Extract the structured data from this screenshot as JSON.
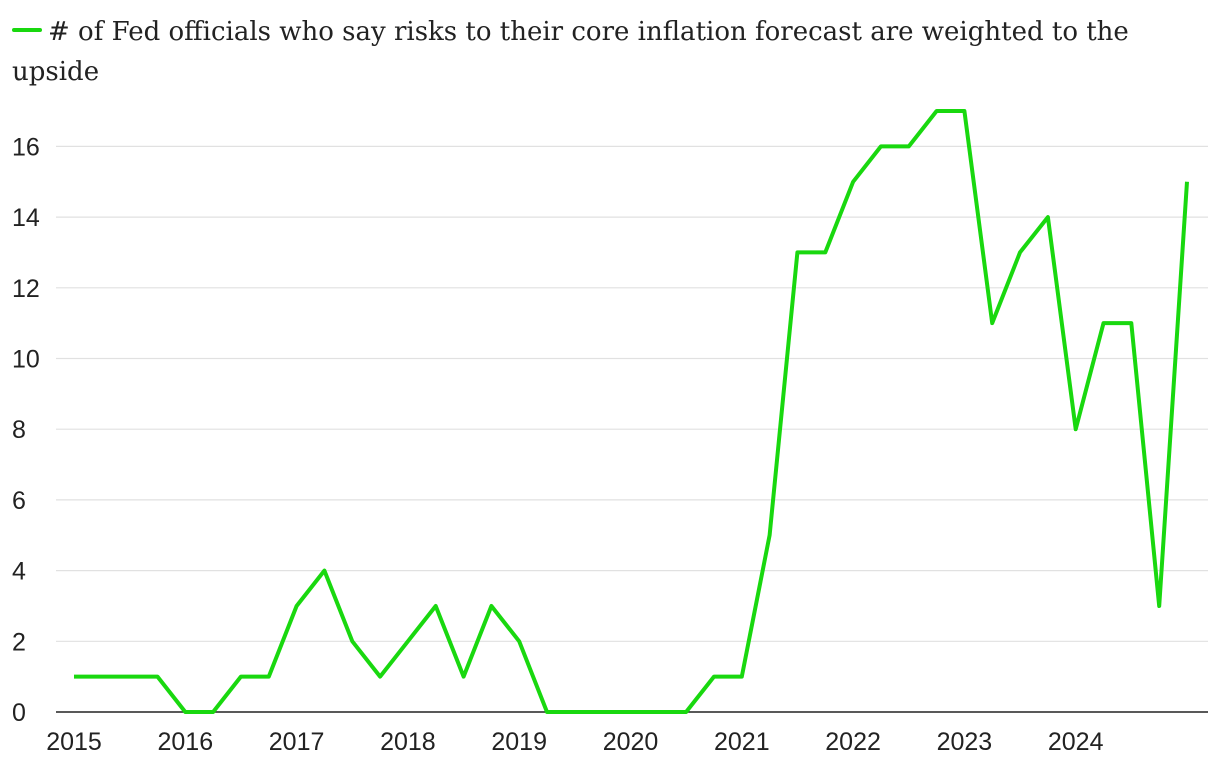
{
  "chart_data": {
    "type": "line",
    "title": "",
    "xlabel": "",
    "ylabel": "",
    "legend_position": "top-left",
    "grid": true,
    "ylim": [
      0,
      17
    ],
    "yticks": [
      0,
      2,
      4,
      6,
      8,
      10,
      12,
      14,
      16
    ],
    "xticks": [
      "2015",
      "2016",
      "2017",
      "2018",
      "2019",
      "2020",
      "2021",
      "2022",
      "2023",
      "2024"
    ],
    "series": [
      {
        "name": "# of Fed officials who say risks to their core inflation forecast are weighted to the upside",
        "color": "#19d80f",
        "x": [
          2015.0,
          2015.25,
          2015.5,
          2015.75,
          2016.0,
          2016.25,
          2016.5,
          2016.75,
          2017.0,
          2017.25,
          2017.5,
          2017.75,
          2018.0,
          2018.25,
          2018.5,
          2018.75,
          2019.0,
          2019.25,
          2019.5,
          2019.75,
          2020.0,
          2020.25,
          2020.5,
          2020.75,
          2021.0,
          2021.25,
          2021.5,
          2021.75,
          2022.0,
          2022.25,
          2022.5,
          2022.75,
          2023.0,
          2023.25,
          2023.5,
          2023.75,
          2024.0,
          2024.25,
          2024.5,
          2024.75,
          2025.0
        ],
        "values": [
          1,
          1,
          1,
          1,
          0,
          0,
          1,
          1,
          3,
          4,
          2,
          1,
          2,
          3,
          1,
          3,
          2,
          0,
          0,
          0,
          0,
          0,
          0,
          1,
          1,
          5,
          13,
          13,
          15,
          16,
          16,
          17,
          17,
          11,
          13,
          14,
          8,
          11,
          11,
          3,
          15
        ]
      }
    ]
  },
  "colors": {
    "gridline": "#e1e1e1",
    "axis": "#222222",
    "text": "#222222"
  }
}
